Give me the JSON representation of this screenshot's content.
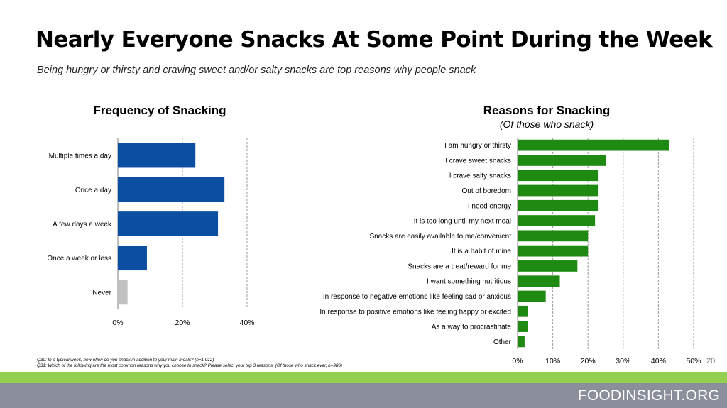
{
  "header": {
    "title": "Nearly Everyone Snacks At Some Point During the Week",
    "subtitle": "Being hungry or thirsty and craving sweet and/or salty snacks are top reasons why people snack"
  },
  "chart_data": [
    {
      "type": "bar",
      "orientation": "horizontal",
      "title": "Frequency of Snacking",
      "categories": [
        "Multiple times a day",
        "Once a day",
        "A few days a week",
        "Once a week or less",
        "Never"
      ],
      "values": [
        24,
        33,
        31,
        9,
        3
      ],
      "bar_colors": [
        "#0b4ea2",
        "#0b4ea2",
        "#0b4ea2",
        "#0b4ea2",
        "#c0c0c0"
      ],
      "xlim": [
        0,
        40
      ],
      "xticks": [
        "0%",
        "20%",
        "40%"
      ],
      "grid": "vertical dashed"
    },
    {
      "type": "bar",
      "orientation": "horizontal",
      "title": "Reasons for Snacking",
      "subtitle": "(Of those who snack)",
      "categories": [
        "I am hungry or thirsty",
        "I crave sweet snacks",
        "I crave salty snacks",
        "Out of boredom",
        "I need energy",
        "It is too long until my next meal",
        "Snacks are easily available to me/convenient",
        "It is a habit of mine",
        "Snacks are a treat/reward for me",
        "I want something nutritious",
        "In response to negative emotions like feeling sad or anxious",
        "In response to positive emotions like feeling happy or excited",
        "As a way to procrastinate",
        "Other"
      ],
      "values": [
        43,
        25,
        23,
        23,
        23,
        22,
        20,
        20,
        17,
        12,
        8,
        3,
        3,
        2
      ],
      "bar_color": "#1e8a12",
      "xlim": [
        0,
        50
      ],
      "xticks": [
        "0%",
        "10%",
        "20%",
        "30%",
        "40%",
        "50%"
      ],
      "grid": "vertical dashed"
    }
  ],
  "footnotes": [
    "Q30: In a typical week, how often do you snack in addition to your main meals? (n=1,012)",
    "Q31: Which of the following are the most common reasons why you choose to snack? Please select your top 3 reasons. (Of those who snack ever, n=986)"
  ],
  "page_number": "20",
  "footer": {
    "brand": "FOODINSIGHT.ORG"
  },
  "colors": {
    "accent_green": "#92d050",
    "footer_gray": "#8a8f9b"
  }
}
